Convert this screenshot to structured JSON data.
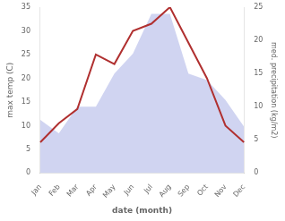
{
  "chart_data": {
    "type": "line",
    "categories": [
      "Jan",
      "Feb",
      "Mar",
      "Apr",
      "May",
      "Jun",
      "Jul",
      "Aug",
      "Sep",
      "Oct",
      "Nov",
      "Dec"
    ],
    "xlabel": "date (month)",
    "ylabel": "max temp (C)",
    "y2label": "med. precipitation (kg/m2)",
    "series": [
      {
        "type": "area",
        "axis": "y2",
        "color": "#b0b8e8",
        "values": [
          8,
          6,
          10,
          10,
          15,
          18,
          24,
          24,
          15,
          14,
          11,
          7
        ]
      },
      {
        "type": "line",
        "color": "#b03030",
        "values": [
          6.5,
          10.5,
          13.5,
          25.0,
          23.0,
          30.0,
          31.5,
          35.0,
          27.5,
          20.0,
          10.0,
          6.5
        ]
      }
    ],
    "ylim": [
      0,
      35
    ],
    "yticks": [
      0,
      5,
      10,
      15,
      20,
      25,
      30,
      35
    ],
    "y2lim": [
      0,
      25
    ],
    "y2ticks": [
      0,
      5,
      10,
      15,
      20,
      25
    ],
    "grid": false
  }
}
